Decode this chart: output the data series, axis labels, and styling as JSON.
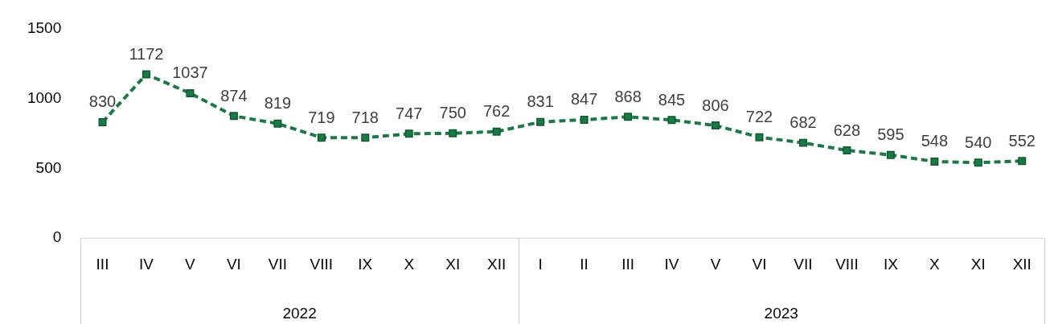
{
  "chart_data": {
    "type": "line",
    "categories": [
      "III",
      "IV",
      "V",
      "VI",
      "VII",
      "VIII",
      "IX",
      "X",
      "XI",
      "XII",
      "I",
      "II",
      "III",
      "IV",
      "V",
      "VI",
      "VII",
      "VIII",
      "IX",
      "X",
      "XI",
      "XII"
    ],
    "series": [
      {
        "color": "#1a7a45",
        "values": [
          830,
          1172,
          1037,
          874,
          819,
          719,
          718,
          747,
          750,
          762,
          831,
          847,
          868,
          845,
          806,
          722,
          682,
          628,
          595,
          548,
          540,
          552
        ]
      }
    ],
    "ylim": [
      0,
      1500
    ],
    "yticks": [
      0,
      500,
      1000,
      1500
    ],
    "annotations": [
      "2022",
      "2023"
    ],
    "data_labels": true,
    "grid": false,
    "legend": false,
    "marker": "square",
    "line_style": "dashed"
  }
}
